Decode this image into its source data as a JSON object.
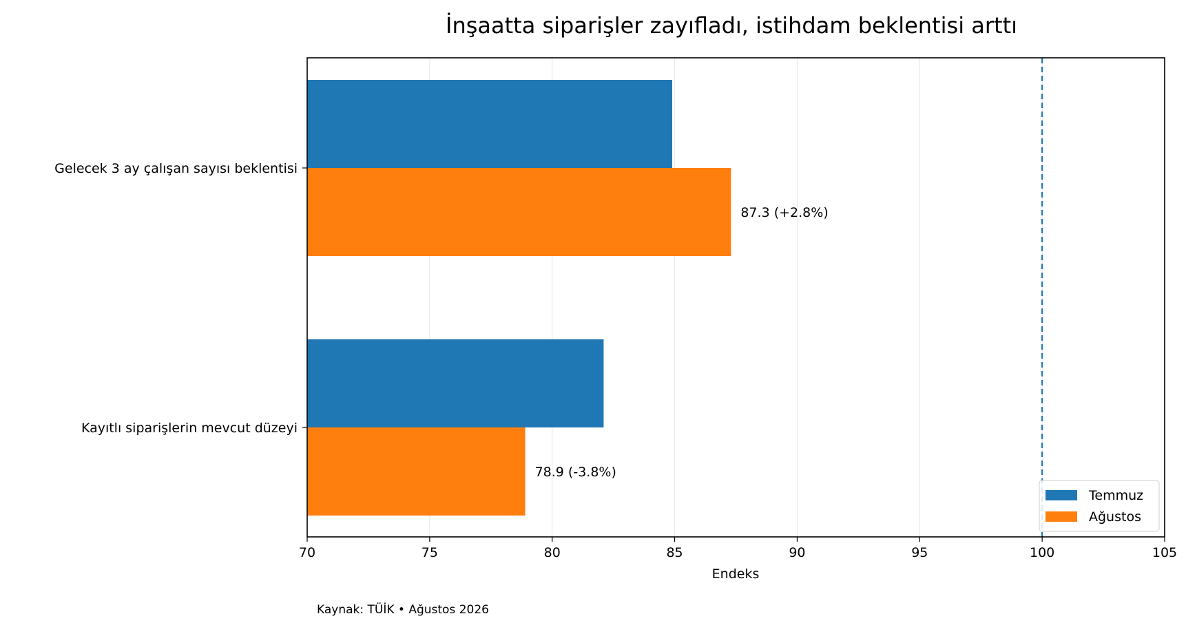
{
  "chart_data": {
    "type": "bar",
    "orientation": "horizontal",
    "title": "İnşaatta siparişler zayıfladı, istihdam beklentisi arttı",
    "xlabel": "Endeks",
    "ylabel": "",
    "xlim": [
      70,
      105
    ],
    "xticks": [
      70,
      75,
      80,
      85,
      90,
      95,
      100,
      105
    ],
    "xtick_labels": [
      "70",
      "75",
      "80",
      "85",
      "90",
      "95",
      "100",
      "105"
    ],
    "grid": "vertical",
    "legend_position": "lower-right",
    "categories": [
      "Gelecek 3 ay çalışan sayısı beklentisi",
      "Kayıtlı siparişlerin mevcut düzeyi"
    ],
    "series": [
      {
        "name": "Temmuz",
        "color": "#1f77b4",
        "values": [
          84.9,
          82.1
        ]
      },
      {
        "name": "Ağustos",
        "color": "#ff7f0e",
        "values": [
          87.3,
          78.9
        ]
      }
    ],
    "data_labels": [
      "87.3  (+2.8%)",
      "78.9  (-3.8%)"
    ],
    "reference_line": {
      "x": 100,
      "color": "#1f77b4",
      "style": "dashed"
    },
    "source_note": "Kaynak: TÜİK • Ağustos 2026"
  }
}
